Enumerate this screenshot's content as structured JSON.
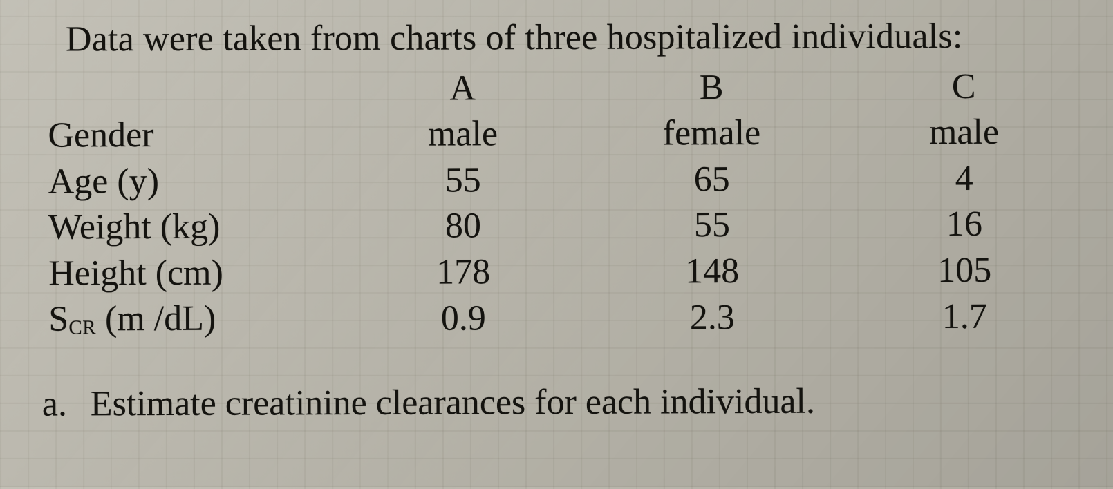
{
  "intro": "Data were taken from charts of three hospitalized individuals:",
  "table": {
    "type": "table",
    "columns": [
      "A",
      "B",
      "C"
    ],
    "rows": [
      {
        "label": "Gender",
        "A": "male",
        "B": "female",
        "C": "male"
      },
      {
        "label": "Age (y)",
        "A": "55",
        "B": "65",
        "C": "4"
      },
      {
        "label": "Weight (kg)",
        "A": "80",
        "B": "55",
        "C": "16"
      },
      {
        "label": "Height (cm)",
        "A": "178",
        "B": "148",
        "C": "105"
      },
      {
        "label_html": "S<span class=\"sub\">CR</span> (m /dL)",
        "label": "S_CR (m /dL)",
        "A": "0.9",
        "B": "2.3",
        "C": "1.7"
      }
    ],
    "font_family": "Times New Roman",
    "font_size_pt": 39,
    "text_color": "#14130f",
    "background_color": "#bcb9ae",
    "grid_color": "#8d8878",
    "column_alignment": [
      "left",
      "center",
      "center",
      "center"
    ]
  },
  "question": {
    "marker": "a.",
    "text": "Estimate creatinine clearances for each individual."
  },
  "styling": {
    "page_background_color": "#bcb9ae",
    "text_color": "#14130f",
    "intro_font_size_pt": 39,
    "table_font_size_pt": 39,
    "question_font_size_pt": 39
  }
}
